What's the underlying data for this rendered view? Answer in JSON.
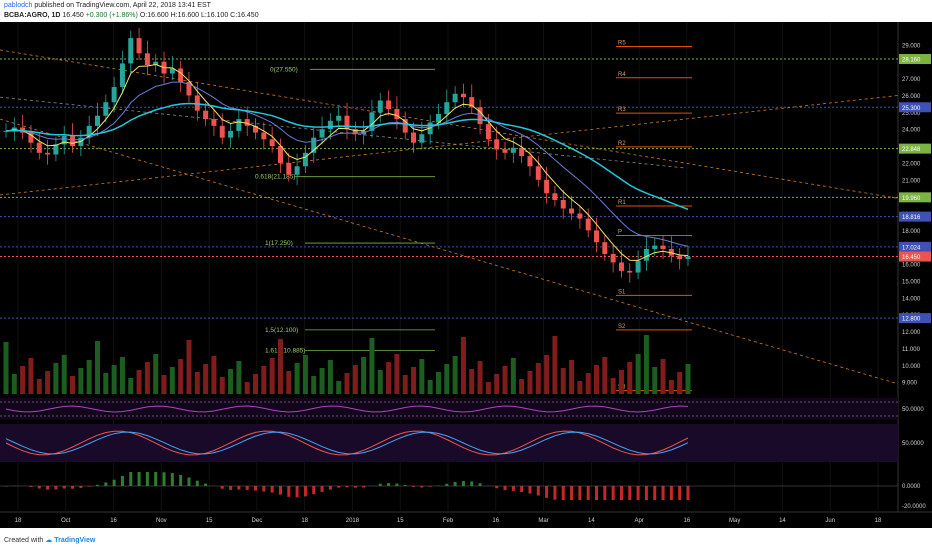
{
  "header": {
    "user": "pablodch",
    "published": "published on TradingView.com, April 22, 2018 13:41 EST",
    "symbol": "BCBA:AGRO, 1D",
    "last": "16.450",
    "change": "+0.300 (+1.86%)",
    "o": "O:16.600",
    "h": "H:16.600",
    "l": "L:16.100",
    "c": "C:16.450"
  },
  "footer": {
    "created_with": "Created with",
    "brand": "TradingView"
  },
  "colors": {
    "bg": "#000000",
    "up": "#26a69a",
    "down": "#ef5350",
    "ema_fast": "#f5e663",
    "ema_mid": "#6b7bd6",
    "ema_slow": "#26c6da",
    "level_green": "#7cb342",
    "level_blue": "#3f51b5",
    "pivot": "#e65100",
    "trend": "#cc7a29"
  },
  "chart_data": {
    "type": "candlestick",
    "y_axis_labels": [
      "29.000",
      "28.000",
      "27.000",
      "26.000",
      "25.000",
      "24.000",
      "23.000",
      "22.000",
      "21.000",
      "20.000",
      "19.000",
      "18.000",
      "17.000",
      "16.000",
      "15.000",
      "14.000",
      "13.000",
      "12.000",
      "11.000",
      "10.000",
      "9.000"
    ],
    "ylim": [
      8.3,
      30
    ],
    "x_axis_labels": [
      "18",
      "Oct",
      "16",
      "Nov",
      "15",
      "Dec",
      "18",
      "2018",
      "15",
      "Feb",
      "16",
      "Mar",
      "14",
      "Apr",
      "16",
      "May",
      "14",
      "Jun",
      "18"
    ],
    "price_tags": [
      {
        "label": "28.160",
        "value": 28.16,
        "color": "#7cb342"
      },
      {
        "label": "25.300",
        "value": 25.3,
        "color": "#3f51b5"
      },
      {
        "label": "22.848",
        "value": 22.848,
        "color": "#7cb342"
      },
      {
        "label": "19.960",
        "value": 19.96,
        "color": "#7cb342"
      },
      {
        "label": "18.816",
        "value": 18.816,
        "color": "#3f51b5"
      },
      {
        "label": "17.024",
        "value": 17.024,
        "color": "#3f51b5"
      },
      {
        "label": "16.450",
        "value": 16.45,
        "color": "#ef5350"
      },
      {
        "label": "12.800",
        "value": 12.8,
        "color": "#3f51b5"
      }
    ],
    "pivots": [
      {
        "label": "R5",
        "value": 28.9
      },
      {
        "label": "R4",
        "value": 27.05
      },
      {
        "label": "R3",
        "value": 24.95
      },
      {
        "label": "R2",
        "value": 22.95
      },
      {
        "label": "R1",
        "value": 19.45
      },
      {
        "label": "P",
        "value": 17.7
      },
      {
        "label": "S1",
        "value": 14.15
      },
      {
        "label": "S2",
        "value": 12.1
      },
      {
        "label": "S3",
        "value": 8.5
      }
    ],
    "fib_labels": [
      {
        "label": "0(27.550)",
        "value": 27.55
      },
      {
        "label": "0.618(21.185)",
        "value": 21.185
      },
      {
        "label": "1(17.250)",
        "value": 17.25
      },
      {
        "label": "1.5(12.100)",
        "value": 12.1
      },
      {
        "label": "1.618(10.885)",
        "value": 10.885
      }
    ],
    "close_path": [
      23.9,
      24.1,
      23.8,
      23.2,
      22.6,
      22.5,
      23.1,
      23.6,
      23.0,
      23.5,
      24.2,
      24.8,
      25.6,
      26.5,
      27.9,
      29.4,
      28.5,
      27.8,
      28.0,
      27.3,
      27.6,
      26.8,
      26.0,
      25.1,
      24.6,
      24.2,
      23.5,
      23.9,
      24.6,
      24.2,
      23.8,
      23.4,
      23.0,
      22.0,
      21.3,
      21.8,
      22.6,
      23.5,
      24.0,
      24.5,
      24.8,
      24.0,
      23.7,
      23.9,
      25.0,
      25.7,
      25.2,
      24.6,
      23.8,
      23.2,
      23.7,
      24.4,
      24.9,
      25.6,
      26.1,
      25.9,
      25.3,
      24.3,
      23.4,
      22.8,
      22.6,
      22.9,
      22.4,
      21.8,
      21.0,
      20.2,
      19.8,
      19.3,
      19.0,
      18.7,
      18.0,
      17.3,
      16.6,
      16.1,
      15.6,
      15.5,
      16.2,
      16.9,
      17.1,
      16.9,
      16.5,
      16.3,
      16.45
    ],
    "osc_labels": [
      "50.0000",
      "50.0000",
      "0.0000",
      "-20.0000"
    ]
  }
}
